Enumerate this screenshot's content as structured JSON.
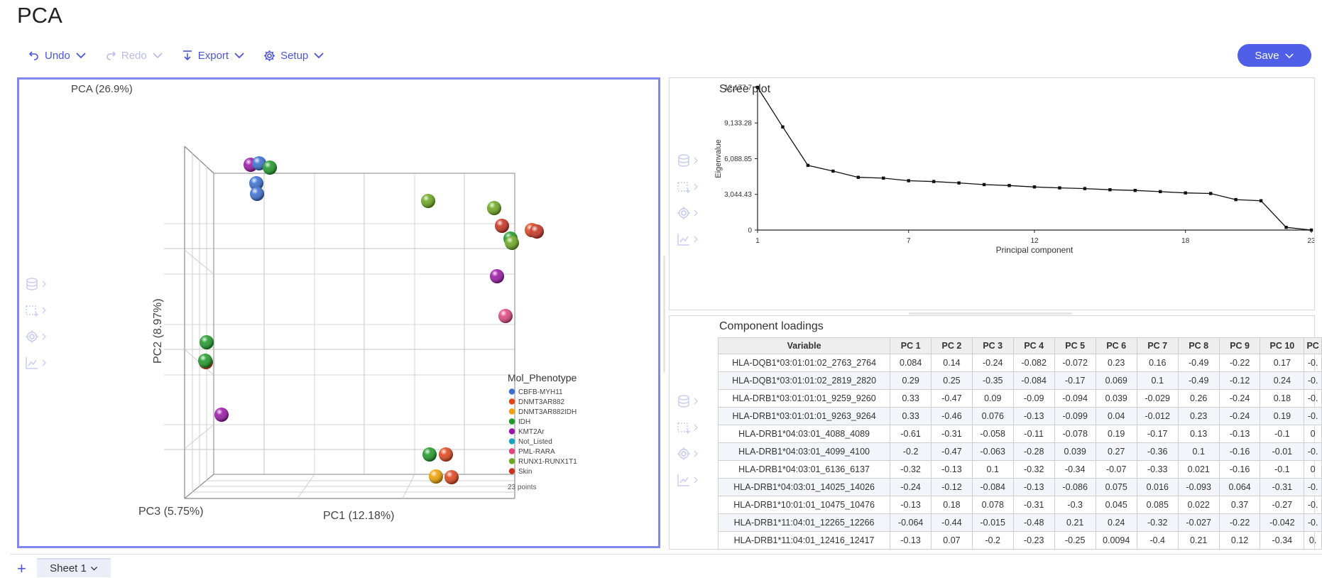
{
  "app": {
    "title": "PCA"
  },
  "toolbar": {
    "undo": "Undo",
    "redo": "Redo",
    "export": "Export",
    "setup": "Setup",
    "save": "Save"
  },
  "pca3d": {
    "title": "PCA (26.9%)",
    "axis_x": "PC1 (12.18%)",
    "axis_y": "PC2 (8.97%)",
    "axis_z": "PC3 (5.75%)",
    "legend_title": "Mol_Phenotype",
    "legend": [
      {
        "label": "CBFB-MYH11",
        "color": "#3a6fd0"
      },
      {
        "label": "DNMT3AR882",
        "color": "#e0441b"
      },
      {
        "label": "DNMT3AR882IDH",
        "color": "#f0a000"
      },
      {
        "label": "IDH",
        "color": "#1e9a28"
      },
      {
        "label": "KMT2Ar",
        "color": "#9b16a8"
      },
      {
        "label": "Not_Listed",
        "color": "#17a4c0"
      },
      {
        "label": "PML-RARA",
        "color": "#e0457e"
      },
      {
        "label": "RUNX1-RUNX1T1",
        "color": "#6aa81e"
      },
      {
        "label": "Skin",
        "color": "#c8321e"
      }
    ],
    "points_note": "23 points"
  },
  "scree": {
    "title": "Scree plot",
    "chart_data": {
      "type": "line",
      "title": "Scree plot",
      "xlabel": "Principal component",
      "ylabel": "Eigenvalue",
      "x_ticks": [
        "1",
        "7",
        "12",
        "18",
        "23"
      ],
      "y_ticks": [
        "0",
        "3,044.43",
        "6,088.85",
        "9,133.28",
        "12,177.7"
      ],
      "xlim": [
        1,
        23
      ],
      "ylim": [
        0,
        12177.7
      ],
      "x": [
        1,
        2,
        3,
        4,
        5,
        6,
        7,
        8,
        9,
        10,
        11,
        12,
        13,
        14,
        15,
        16,
        17,
        18,
        19,
        20,
        21,
        22,
        23
      ],
      "y": [
        12177.7,
        8800,
        5520,
        5030,
        4500,
        4430,
        4210,
        4140,
        4020,
        3880,
        3800,
        3680,
        3600,
        3540,
        3440,
        3380,
        3280,
        3170,
        3120,
        2600,
        2500,
        230,
        0
      ]
    }
  },
  "loadings": {
    "title": "Component loadings",
    "headers": [
      "Variable",
      "PC 1",
      "PC 2",
      "PC 3",
      "PC 4",
      "PC 5",
      "PC 6",
      "PC 7",
      "PC 8",
      "PC 9",
      "PC 10",
      "PC"
    ],
    "rows": [
      [
        "HLA-DQB1*03:01:01:02_2763_2764",
        "0.084",
        "0.14",
        "-0.24",
        "-0.082",
        "-0.072",
        "0.23",
        "0.16",
        "-0.49",
        "-0.22",
        "0.17",
        "-0."
      ],
      [
        "HLA-DQB1*03:01:01:02_2819_2820",
        "0.29",
        "0.25",
        "-0.35",
        "-0.084",
        "-0.17",
        "0.069",
        "0.1",
        "-0.49",
        "-0.12",
        "0.24",
        "-0."
      ],
      [
        "HLA-DRB1*03:01:01:01_9259_9260",
        "0.33",
        "-0.47",
        "0.09",
        "-0.09",
        "-0.094",
        "0.039",
        "-0.029",
        "0.26",
        "-0.24",
        "0.18",
        "-0."
      ],
      [
        "HLA-DRB1*03:01:01:01_9263_9264",
        "0.33",
        "-0.46",
        "0.076",
        "-0.13",
        "-0.099",
        "0.04",
        "-0.012",
        "0.23",
        "-0.24",
        "0.19",
        "-0."
      ],
      [
        "HLA-DRB1*04:03:01_4088_4089",
        "-0.61",
        "-0.31",
        "-0.058",
        "-0.11",
        "-0.078",
        "0.19",
        "-0.17",
        "0.13",
        "-0.13",
        "-0.1",
        "0"
      ],
      [
        "HLA-DRB1*04:03:01_4099_4100",
        "-0.2",
        "-0.47",
        "-0.063",
        "-0.28",
        "0.039",
        "0.27",
        "-0.36",
        "0.1",
        "-0.16",
        "-0.01",
        "-0."
      ],
      [
        "HLA-DRB1*04:03:01_6136_6137",
        "-0.32",
        "-0.13",
        "0.1",
        "-0.32",
        "-0.34",
        "-0.07",
        "-0.33",
        "0.021",
        "-0.16",
        "-0.1",
        "0"
      ],
      [
        "HLA-DRB1*04:03:01_14025_14026",
        "-0.24",
        "-0.12",
        "-0.084",
        "-0.13",
        "-0.086",
        "0.075",
        "0.016",
        "-0.093",
        "0.064",
        "-0.31",
        "-0."
      ],
      [
        "HLA-DRB1*10:01:01_10475_10476",
        "-0.13",
        "0.18",
        "0.078",
        "-0.31",
        "-0.3",
        "0.045",
        "0.085",
        "0.022",
        "0.37",
        "-0.27",
        "-0."
      ],
      [
        "HLA-DRB1*11:04:01_12265_12266",
        "-0.064",
        "-0.44",
        "-0.015",
        "-0.48",
        "0.21",
        "0.24",
        "-0.32",
        "-0.027",
        "-0.22",
        "-0.042",
        "-0."
      ],
      [
        "HLA-DRB1*11:04:01_12416_12417",
        "-0.13",
        "0.07",
        "-0.2",
        "-0.23",
        "-0.25",
        "0.0094",
        "-0.4",
        "0.21",
        "0.12",
        "-0.34",
        "0."
      ]
    ]
  },
  "sheets": {
    "add": "+",
    "active": "Sheet 1"
  }
}
